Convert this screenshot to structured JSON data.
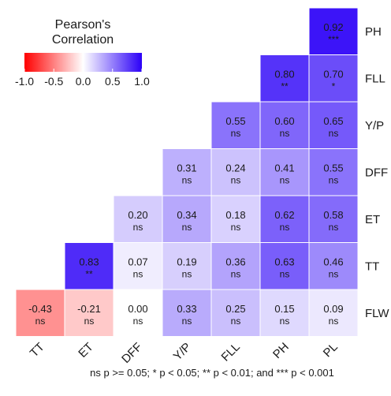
{
  "chart_data": {
    "type": "heatmap",
    "legend": {
      "title_lines": [
        "Pearson's",
        "Correlation"
      ],
      "ticks": [
        "-1.0",
        "-0.5",
        "0.0",
        "0.5",
        "1.0"
      ],
      "range": [
        -1,
        1
      ],
      "colors": {
        "low": "#ff0000",
        "mid": "#ffffff",
        "high": "#2b00f7"
      },
      "placement": "top-left"
    },
    "rows": [
      "PH",
      "FLL",
      "Y/P",
      "DFF",
      "ET",
      "TT",
      "FLW"
    ],
    "columns": [
      "TT",
      "ET",
      "DFF",
      "Y/P",
      "FLL",
      "PH",
      "PL"
    ],
    "cells": [
      {
        "row": "PH",
        "col": "PL",
        "value": "0.92",
        "sig": "***"
      },
      {
        "row": "FLL",
        "col": "PH",
        "value": "0.80",
        "sig": "**"
      },
      {
        "row": "FLL",
        "col": "PL",
        "value": "0.70",
        "sig": "*"
      },
      {
        "row": "Y/P",
        "col": "FLL",
        "value": "0.55",
        "sig": "ns"
      },
      {
        "row": "Y/P",
        "col": "PH",
        "value": "0.60",
        "sig": "ns"
      },
      {
        "row": "Y/P",
        "col": "PL",
        "value": "0.65",
        "sig": "ns"
      },
      {
        "row": "DFF",
        "col": "Y/P",
        "value": "0.31",
        "sig": "ns"
      },
      {
        "row": "DFF",
        "col": "FLL",
        "value": "0.24",
        "sig": "ns"
      },
      {
        "row": "DFF",
        "col": "PH",
        "value": "0.41",
        "sig": "ns"
      },
      {
        "row": "DFF",
        "col": "PL",
        "value": "0.55",
        "sig": "ns"
      },
      {
        "row": "ET",
        "col": "DFF",
        "value": "0.20",
        "sig": "ns"
      },
      {
        "row": "ET",
        "col": "Y/P",
        "value": "0.34",
        "sig": "ns"
      },
      {
        "row": "ET",
        "col": "FLL",
        "value": "0.18",
        "sig": "ns"
      },
      {
        "row": "ET",
        "col": "PH",
        "value": "0.62",
        "sig": "ns"
      },
      {
        "row": "ET",
        "col": "PL",
        "value": "0.58",
        "sig": "ns"
      },
      {
        "row": "TT",
        "col": "ET",
        "value": "0.83",
        "sig": "**"
      },
      {
        "row": "TT",
        "col": "DFF",
        "value": "0.07",
        "sig": "ns"
      },
      {
        "row": "TT",
        "col": "Y/P",
        "value": "0.19",
        "sig": "ns"
      },
      {
        "row": "TT",
        "col": "FLL",
        "value": "0.36",
        "sig": "ns"
      },
      {
        "row": "TT",
        "col": "PH",
        "value": "0.63",
        "sig": "ns"
      },
      {
        "row": "TT",
        "col": "PL",
        "value": "0.46",
        "sig": "ns"
      },
      {
        "row": "FLW",
        "col": "TT",
        "value": "-0.43",
        "sig": "ns"
      },
      {
        "row": "FLW",
        "col": "ET",
        "value": "-0.21",
        "sig": "ns"
      },
      {
        "row": "FLW",
        "col": "DFF",
        "value": "0.00",
        "sig": "ns"
      },
      {
        "row": "FLW",
        "col": "Y/P",
        "value": "0.33",
        "sig": "ns"
      },
      {
        "row": "FLW",
        "col": "FLL",
        "value": "0.25",
        "sig": "ns"
      },
      {
        "row": "FLW",
        "col": "PH",
        "value": "0.15",
        "sig": "ns"
      },
      {
        "row": "FLW",
        "col": "PL",
        "value": "0.09",
        "sig": "ns"
      }
    ],
    "footnote": "ns p >= 0.05; * p < 0.05; ** p < 0.01; and *** p < 0.001"
  }
}
